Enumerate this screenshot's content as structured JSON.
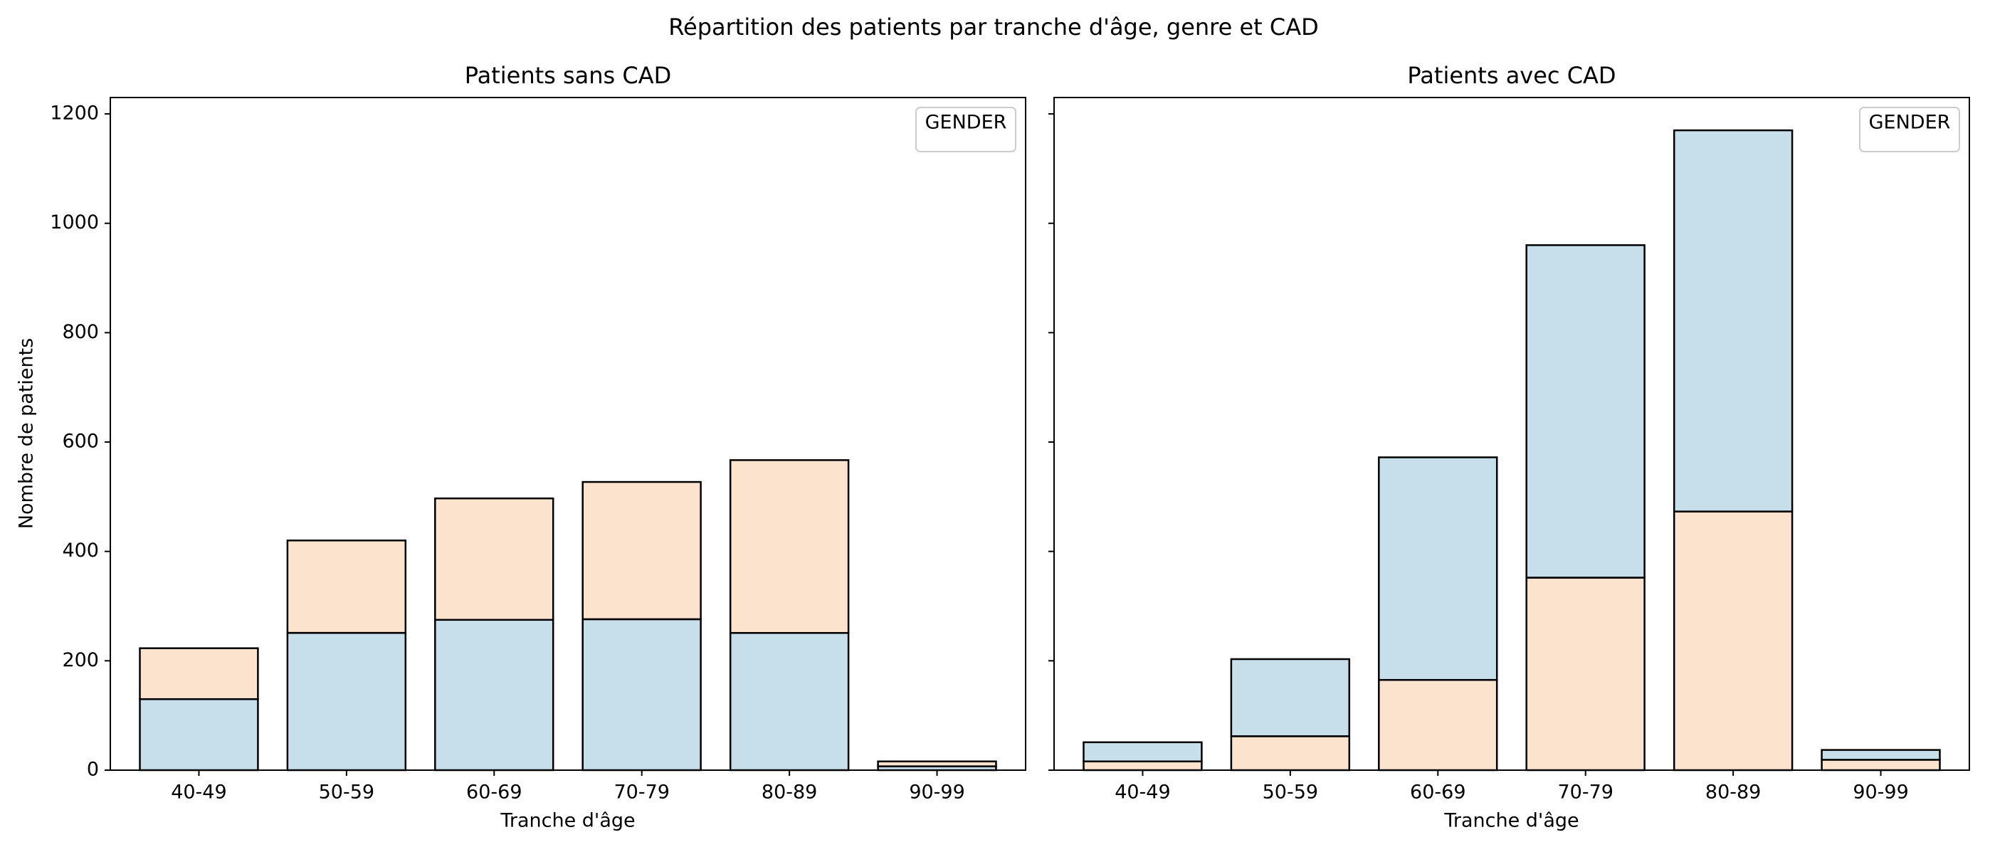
{
  "figure": {
    "suptitle": "Répartition des patients par tranche d'âge, genre et CAD",
    "ylabel": "Nombre de patients"
  },
  "colors": {
    "blue": "#c6dfeb",
    "orange": "#fbe3cd",
    "edge": "#000000",
    "legend_border": "#cccccc"
  },
  "chart_data": [
    {
      "type": "bar",
      "stacked": true,
      "title": "Patients sans CAD",
      "xlabel": "Tranche d'âge",
      "ylabel": "Nombre de patients",
      "ylim": [
        0,
        1230
      ],
      "yticks": [
        0,
        200,
        400,
        600,
        800,
        1000,
        1200
      ],
      "categories": [
        "40-49",
        "50-59",
        "60-69",
        "70-79",
        "80-89",
        "90-99"
      ],
      "series": [
        {
          "color": "blue",
          "values": [
            130,
            251,
            275,
            276,
            251,
            7
          ]
        },
        {
          "color": "orange",
          "values": [
            93,
            169,
            222,
            251,
            316,
            9
          ]
        }
      ],
      "legend": {
        "title": "GENDER",
        "position": "upper right"
      },
      "grid": false
    },
    {
      "type": "bar",
      "stacked": true,
      "title": "Patients avec CAD",
      "xlabel": "Tranche d'âge",
      "ylabel": "",
      "ylim": [
        0,
        1230
      ],
      "yticks": [
        0,
        200,
        400,
        600,
        800,
        1000,
        1200
      ],
      "categories": [
        "40-49",
        "50-59",
        "60-69",
        "70-79",
        "80-89",
        "90-99"
      ],
      "series": [
        {
          "color": "orange",
          "values": [
            16,
            62,
            165,
            352,
            473,
            19
          ]
        },
        {
          "color": "blue",
          "values": [
            35,
            141,
            407,
            608,
            697,
            18
          ]
        }
      ],
      "legend": {
        "title": "GENDER",
        "position": "upper right"
      },
      "grid": false
    }
  ]
}
